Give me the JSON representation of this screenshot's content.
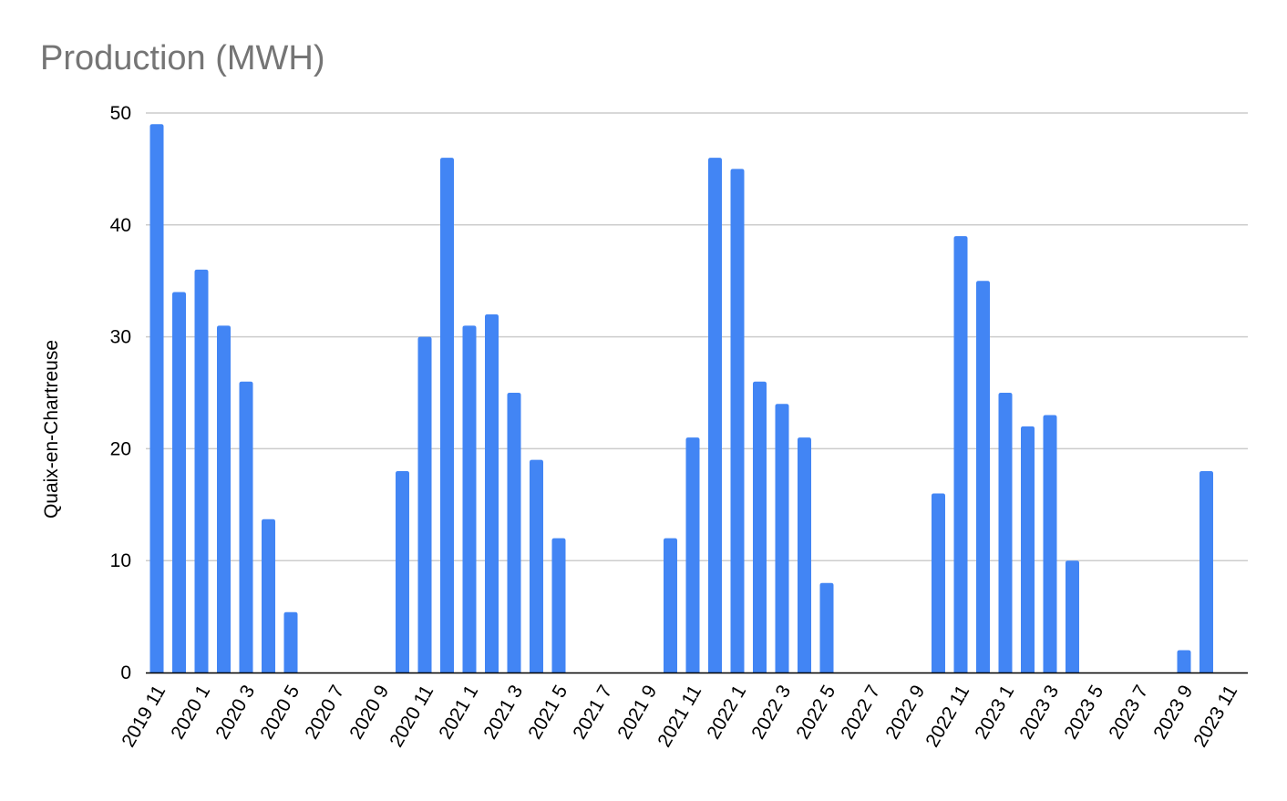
{
  "chart_data": {
    "type": "bar",
    "title": "Production (MWH)",
    "xlabel": "",
    "ylabel": "Quaix-en-Chartreuse",
    "ylim": [
      0,
      50
    ],
    "yticks": [
      0,
      10,
      20,
      30,
      40,
      50
    ],
    "grid": true,
    "legend": "none",
    "bar_color": "#4285f4",
    "categories": [
      "2019 11",
      "2019 12",
      "2020 1",
      "2020 2",
      "2020 3",
      "2020 4",
      "2020 5",
      "2020 6",
      "2020 7",
      "2020 8",
      "2020 9",
      "2020 10",
      "2020 11",
      "2020 12",
      "2021 1",
      "2021 2",
      "2021 3",
      "2021 4",
      "2021 5",
      "2021 6",
      "2021 7",
      "2021 8",
      "2021 9",
      "2021 10",
      "2021 11",
      "2021 12",
      "2022 1",
      "2022 2",
      "2022 3",
      "2022 4",
      "2022 5",
      "2022 6",
      "2022 7",
      "2022 8",
      "2022 9",
      "2022 10",
      "2022 11",
      "2022 12",
      "2023 1",
      "2023 2",
      "2023 3",
      "2023 4",
      "2023 5",
      "2023 6",
      "2023 7",
      "2023 8",
      "2023 9",
      "2023 10",
      "2023 11"
    ],
    "values": [
      49,
      34,
      36,
      31,
      26,
      13.7,
      5.4,
      0,
      0,
      0,
      0,
      18,
      30,
      46,
      31,
      32,
      25,
      19,
      12,
      0,
      0,
      0,
      0,
      12,
      21,
      46,
      45,
      26,
      24,
      21,
      8,
      0,
      0,
      0,
      0,
      16,
      39,
      35,
      25,
      22,
      23,
      10,
      0,
      0,
      0,
      0,
      2,
      18,
      0
    ],
    "tick_labels": [
      "2019 11",
      "2020 1",
      "2020 3",
      "2020 5",
      "2020 7",
      "2020 9",
      "2020 11",
      "2021 1",
      "2021 3",
      "2021 5",
      "2021 7",
      "2021 9",
      "2021 11",
      "2022 1",
      "2022 3",
      "2022 5",
      "2022 7",
      "2022 9",
      "2022 11",
      "2023 1",
      "2023 3",
      "2023 5",
      "2023 7",
      "2023 9",
      "2023 11"
    ]
  },
  "colors": {
    "bar": "#4285f4",
    "title": "#757575",
    "text": "#000000",
    "grid": "#cccccc",
    "axis": "#000000"
  }
}
